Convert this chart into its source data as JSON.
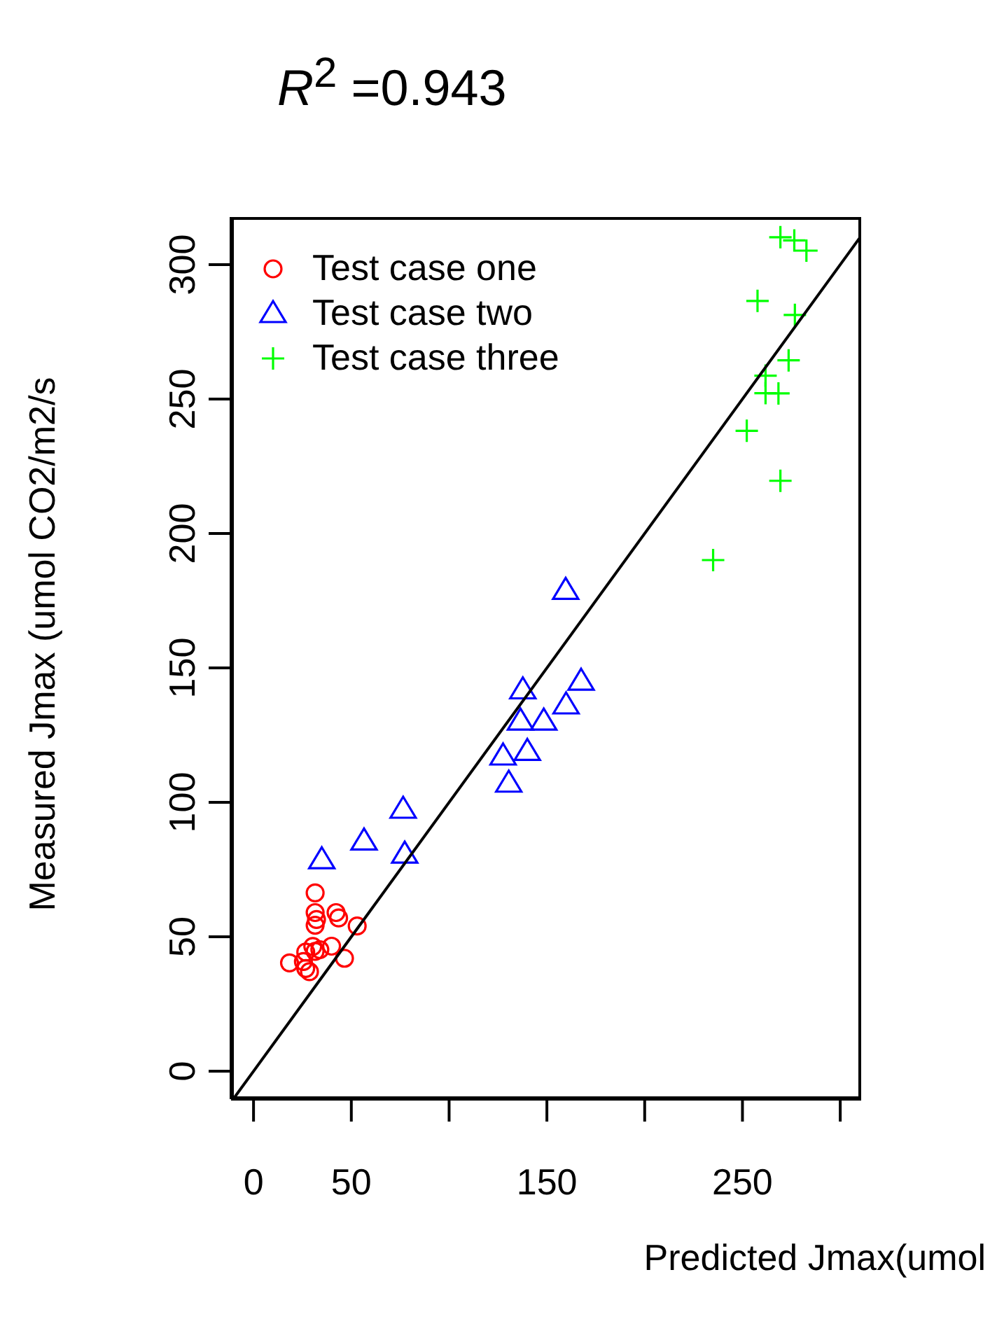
{
  "chart_data": {
    "type": "scatter",
    "title": "R$^{2}$ =0.943",
    "xlabel": "Predicted Jmax(umol",
    "ylabel": "Measured Jmax (umol CO2/m2/s",
    "xlim": [
      -11.5,
      310.7
    ],
    "ylim": [
      -10.4,
      317.7
    ],
    "xticks": [
      0,
      50,
      {
        "value": 100,
        "label": null
      },
      150,
      {
        "value": 200,
        "label": null
      },
      250,
      {
        "value": 300,
        "label": null
      }
    ],
    "yticks": [
      0,
      50,
      100,
      150,
      200,
      250,
      300
    ],
    "grid": false,
    "legend": "top left",
    "series": [
      {
        "name": "Test case one",
        "type": "scatter",
        "marker": "circle",
        "color": "#ff0000",
        "x": [
          31.5,
          31.5,
          42.2,
          43.5,
          32.2,
          31.5,
          53,
          30.3,
          39.9,
          33.9,
          26.7,
          46.5,
          18.4,
          25.5,
          26.7,
          28.6,
          31.5
        ],
        "values": [
          66.3,
          59,
          59,
          57,
          56.4,
          54.3,
          54,
          46.4,
          46.5,
          45.2,
          44.3,
          42,
          40.3,
          40.8,
          38.2,
          37,
          44.6
        ]
      },
      {
        "name": "Test case two",
        "type": "scatter",
        "marker": "triangle",
        "color": "#0000ff",
        "x": [
          34.9,
          56.5,
          77.3,
          76.5,
          159.6,
          167.5,
          159.8,
          137.7,
          136.5,
          148.4,
          140,
          127.6,
          130.5
        ],
        "values": [
          78.6,
          85.6,
          80.7,
          97.4,
          178.8,
          145,
          136.2,
          141.8,
          130.2,
          130.2,
          118.9,
          117.2,
          107.1
        ]
      },
      {
        "name": "Test case three",
        "type": "scatter",
        "marker": "cross",
        "color": "#00ff00",
        "x": [
          269.4,
          276.5,
          282.7,
          257.7,
          276.8,
          273.6,
          261.8,
          261.8,
          268.4,
          252.2,
          269.4,
          235
        ],
        "values": [
          310.2,
          309,
          305.2,
          286.5,
          281.3,
          264.4,
          258.7,
          252.2,
          252.1,
          238.2,
          219.6,
          190.1
        ]
      },
      {
        "type": "line",
        "color": "#000000",
        "x": [
          -10.4,
          310.7
        ],
        "values": [
          -10.4,
          310.7
        ]
      }
    ]
  }
}
